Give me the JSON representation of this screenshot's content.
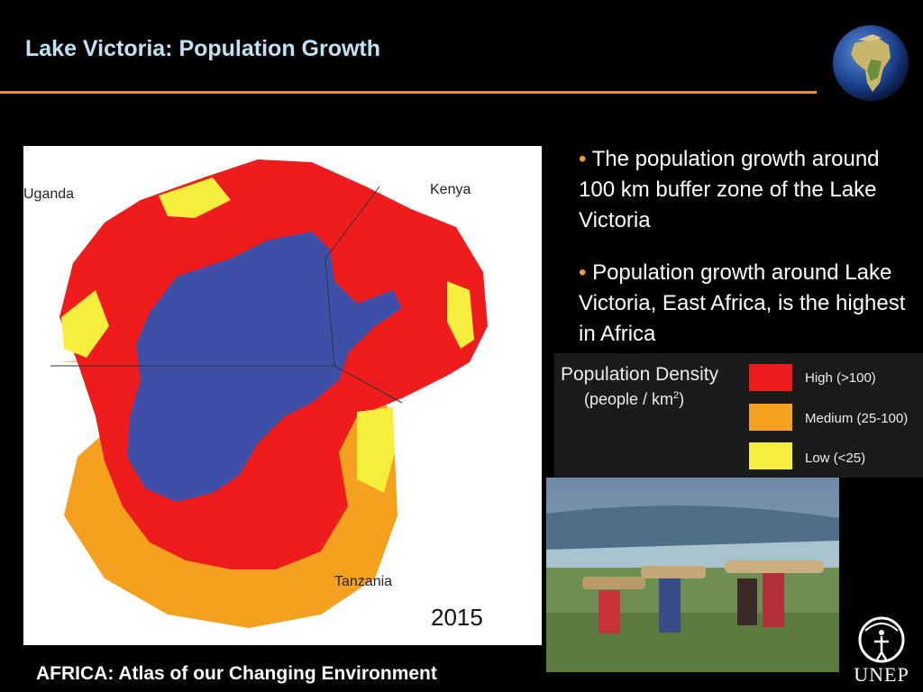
{
  "slide": {
    "title": "Lake Victoria: Population Growth",
    "footer": "AFRICA: Atlas of our Changing Environment",
    "logo_text": "UNEP"
  },
  "map": {
    "labels": {
      "uganda": "Uganda",
      "kenya": "Kenya",
      "tanzania": "Tanzania"
    },
    "year": "2015",
    "colors": {
      "high": "#ee1c1c",
      "medium": "#f4a11f",
      "low": "#f6ee3c",
      "lake": "#3f4fa8"
    }
  },
  "bullets": [
    "The population growth around 100 km buffer zone of the Lake Victoria",
    "Population growth around Lake Victoria, East Africa, is the highest in Africa"
  ],
  "legend": {
    "title": "Population Density",
    "unit_prefix": "(people / km",
    "unit_sup": "2",
    "unit_suffix": ")",
    "items": [
      {
        "label": "High (>100)",
        "color": "#ee1c1c"
      },
      {
        "label": "Medium (25-100)",
        "color": "#f4a11f"
      },
      {
        "label": "Low (<25)",
        "color": "#f6ee3c"
      }
    ]
  }
}
